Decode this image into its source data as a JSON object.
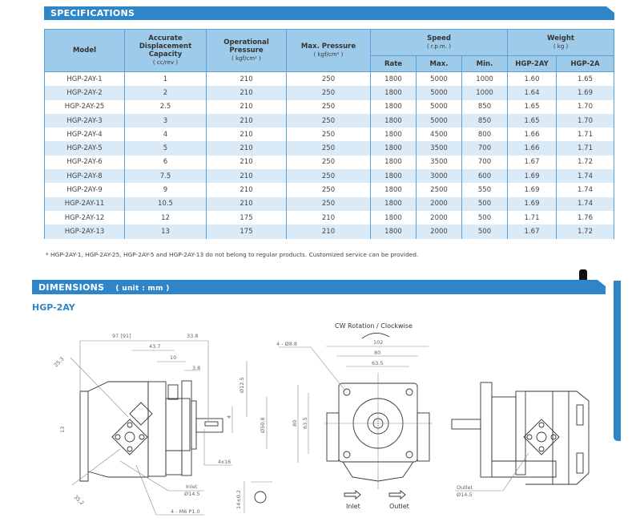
{
  "specifications": {
    "title": "SPECIFICATIONS",
    "headers": {
      "model": "Model",
      "displacement": "Accurate Displacement Capacity",
      "displacement_unit": "( cc/rev )",
      "op_pressure": "Operational Pressure",
      "op_pressure_unit": "( kgf/cm² )",
      "max_pressure": "Max. Pressure",
      "max_pressure_unit": "( kgf/cm² )",
      "speed": "Speed",
      "speed_unit": "( r.p.m. )",
      "rate": "Rate",
      "max": "Max.",
      "min": "Min.",
      "weight": "Weight",
      "weight_unit": "( kg )",
      "w_2ay": "HGP-2AY",
      "w_2a": "HGP-2A"
    },
    "rows": [
      [
        "HGP-2AY-1",
        "1",
        "210",
        "250",
        "1800",
        "5000",
        "1000",
        "1.60",
        "1.65"
      ],
      [
        "HGP-2AY-2",
        "2",
        "210",
        "250",
        "1800",
        "5000",
        "1000",
        "1.64",
        "1.69"
      ],
      [
        "HGP-2AY-25",
        "2.5",
        "210",
        "250",
        "1800",
        "5000",
        "850",
        "1.65",
        "1.70"
      ],
      [
        "HGP-2AY-3",
        "3",
        "210",
        "250",
        "1800",
        "5000",
        "850",
        "1.65",
        "1.70"
      ],
      [
        "HGP-2AY-4",
        "4",
        "210",
        "250",
        "1800",
        "4500",
        "800",
        "1.66",
        "1.71"
      ],
      [
        "HGP-2AY-5",
        "5",
        "210",
        "250",
        "1800",
        "3500",
        "700",
        "1.66",
        "1.71"
      ],
      [
        "HGP-2AY-6",
        "6",
        "210",
        "250",
        "1800",
        "3500",
        "700",
        "1.67",
        "1.72"
      ],
      [
        "HGP-2AY-8",
        "7.5",
        "210",
        "250",
        "1800",
        "3000",
        "600",
        "1.69",
        "1.74"
      ],
      [
        "HGP-2AY-9",
        "9",
        "210",
        "250",
        "1800",
        "2500",
        "550",
        "1.69",
        "1.74"
      ],
      [
        "HGP-2AY-11",
        "10.5",
        "210",
        "250",
        "1800",
        "2000",
        "500",
        "1.69",
        "1.74"
      ],
      [
        "HGP-2AY-12",
        "12",
        "175",
        "210",
        "1800",
        "2000",
        "500",
        "1.71",
        "1.76"
      ],
      [
        "HGP-2AY-13",
        "13",
        "175",
        "210",
        "1800",
        "2000",
        "500",
        "1.67",
        "1.72"
      ]
    ],
    "note": "* HGP-2AY-1, HGP-2AY-25, HGP-2AY-5 and HGP-2AY-13 do not belong to regular products. Customized service can be provided."
  },
  "dimensions": {
    "title": "DIMENSIONS",
    "unit": "( unit : mm )",
    "model": "HGP-2AY",
    "rotation": "CW Rotation / Clockwise",
    "labels": {
      "d97": "97 [91]",
      "d33": "33.8",
      "d43": "43.7",
      "d10": "10",
      "d38": "3.8",
      "d253": "25.3",
      "d13": "13",
      "d352": "35.2",
      "d125": "Ø12.5",
      "d508": "Ø50.8",
      "d4": "4",
      "key": "4x16",
      "inlet": "Inlet",
      "inlet_dia": "Ø14.5",
      "m6": "4 - M6 P1.0",
      "d14": "14±0.2",
      "holes": "4 - Ø8.8",
      "d102": "102",
      "d80": "80",
      "d635": "63.5",
      "v80": "80",
      "v635": "63.5",
      "outlet": "Outlet",
      "outlet_dia": "Ø14.5"
    },
    "arrows": {
      "inlet": "Inlet",
      "outlet": "Outlet"
    }
  },
  "colors": {
    "accent": "#2e86c8",
    "header_bg": "#9fcbea",
    "row_alt": "#dbeaf7"
  }
}
